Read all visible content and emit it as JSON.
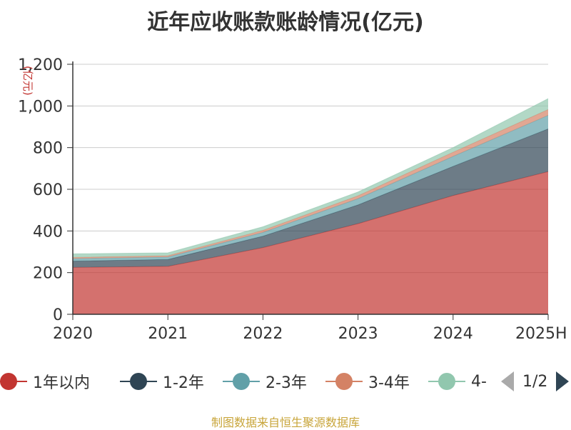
{
  "title": "近年应收账款账龄情况(亿元)",
  "source_note": "制图数据来自恒生聚源数据库",
  "legend_page": "1/2",
  "chart_data": {
    "type": "area",
    "stacked": true,
    "title": "近年应收账款账龄情况(亿元)",
    "ylabel": "(亿元)",
    "categories": [
      "2020",
      "2021",
      "2022",
      "2023",
      "2024",
      "2025H"
    ],
    "ylim": [
      0,
      1200
    ],
    "yticks": [
      0,
      200,
      400,
      600,
      800,
      1000,
      1200
    ],
    "ytick_labels": [
      "0",
      "200",
      "400",
      "600",
      "800",
      "1,000",
      "1,200"
    ],
    "grid": true,
    "legend_position": "bottom",
    "series": [
      {
        "name": "1年以内",
        "color": "#c23531",
        "values": [
          225,
          230,
          320,
          435,
          570,
          685
        ]
      },
      {
        "name": "1-2年",
        "color": "#2f4554",
        "values": [
          30,
          33,
          55,
          90,
          140,
          205
        ]
      },
      {
        "name": "2-3年",
        "color": "#61a0a8",
        "values": [
          12,
          12,
          18,
          30,
          48,
          65
        ]
      },
      {
        "name": "3-4年",
        "color": "#d48265",
        "values": [
          6,
          6,
          10,
          14,
          20,
          28
        ]
      },
      {
        "name": "4-",
        "color": "#91c7ae",
        "values": [
          17,
          14,
          17,
          18,
          22,
          52
        ]
      }
    ]
  }
}
